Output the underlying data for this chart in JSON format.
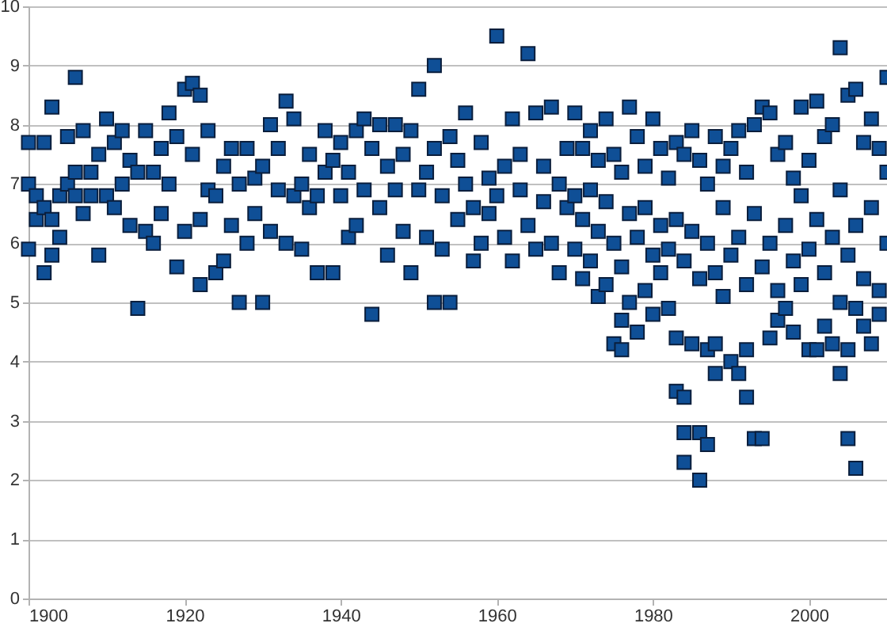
{
  "chart_data": {
    "type": "scatter",
    "x": [
      1900,
      1900,
      1900,
      1901,
      1901,
      1902,
      1902,
      1902,
      1903,
      1903,
      1903,
      1904,
      1904,
      1905,
      1905,
      1906,
      1906,
      1906,
      1907,
      1907,
      1908,
      1908,
      1909,
      1909,
      1910,
      1910,
      1911,
      1911,
      1912,
      1912,
      1913,
      1913,
      1914,
      1914,
      1915,
      1915,
      1916,
      1916,
      1917,
      1917,
      1918,
      1918,
      1919,
      1919,
      1920,
      1920,
      1921,
      1921,
      1922,
      1922,
      1922,
      1923,
      1923,
      1924,
      1924,
      1925,
      1925,
      1926,
      1926,
      1927,
      1927,
      1928,
      1928,
      1929,
      1929,
      1930,
      1930,
      1931,
      1931,
      1932,
      1932,
      1933,
      1933,
      1934,
      1934,
      1935,
      1935,
      1936,
      1936,
      1937,
      1937,
      1938,
      1938,
      1939,
      1939,
      1940,
      1940,
      1941,
      1941,
      1942,
      1942,
      1943,
      1943,
      1944,
      1944,
      1945,
      1945,
      1946,
      1946,
      1947,
      1947,
      1948,
      1948,
      1949,
      1949,
      1950,
      1950,
      1951,
      1951,
      1952,
      1952,
      1952,
      1953,
      1953,
      1954,
      1954,
      1955,
      1955,
      1956,
      1956,
      1957,
      1957,
      1958,
      1958,
      1959,
      1959,
      1960,
      1960,
      1961,
      1961,
      1962,
      1962,
      1963,
      1963,
      1964,
      1964,
      1965,
      1965,
      1966,
      1966,
      1967,
      1967,
      1968,
      1968,
      1969,
      1969,
      1970,
      1970,
      1970,
      1971,
      1971,
      1971,
      1972,
      1972,
      1972,
      1973,
      1973,
      1973,
      1974,
      1974,
      1974,
      1975,
      1975,
      1975,
      1976,
      1976,
      1976,
      1976,
      1977,
      1977,
      1977,
      1978,
      1978,
      1978,
      1979,
      1979,
      1979,
      1980,
      1980,
      1980,
      1981,
      1981,
      1981,
      1982,
      1982,
      1982,
      1983,
      1983,
      1983,
      1983,
      1984,
      1984,
      1984,
      1984,
      1984,
      1985,
      1985,
      1985,
      1986,
      1986,
      1986,
      1986,
      1987,
      1987,
      1987,
      1987,
      1988,
      1988,
      1988,
      1988,
      1989,
      1989,
      1989,
      1990,
      1990,
      1990,
      1991,
      1991,
      1991,
      1992,
      1992,
      1992,
      1992,
      1993,
      1993,
      1993,
      1994,
      1994,
      1994,
      1995,
      1995,
      1995,
      1996,
      1996,
      1996,
      1997,
      1997,
      1997,
      1998,
      1998,
      1998,
      1999,
      1999,
      1999,
      2000,
      2000,
      2000,
      2001,
      2001,
      2001,
      2002,
      2002,
      2002,
      2003,
      2003,
      2003,
      2004,
      2004,
      2004,
      2004,
      2005,
      2005,
      2005,
      2005,
      2006,
      2006,
      2006,
      2006,
      2007,
      2007,
      2007,
      2008,
      2008,
      2008,
      2009,
      2009,
      2009,
      2010,
      2010,
      2010
    ],
    "values": [
      7.7,
      5.9,
      7.0,
      6.8,
      6.4,
      7.7,
      5.5,
      6.6,
      8.3,
      5.8,
      6.4,
      6.8,
      6.1,
      7.0,
      7.8,
      8.8,
      6.8,
      7.2,
      7.9,
      6.5,
      7.2,
      6.8,
      7.5,
      5.8,
      8.1,
      6.8,
      7.7,
      6.6,
      7.9,
      7.0,
      7.4,
      6.3,
      4.9,
      7.2,
      7.9,
      6.2,
      7.2,
      6.0,
      6.5,
      7.6,
      8.2,
      7.0,
      7.8,
      5.6,
      8.6,
      6.2,
      8.7,
      7.5,
      8.5,
      6.4,
      5.3,
      7.9,
      6.9,
      6.8,
      5.5,
      7.3,
      5.7,
      7.6,
      6.3,
      5.0,
      7.0,
      7.6,
      6.0,
      7.1,
      6.5,
      5.0,
      7.3,
      8.0,
      6.2,
      7.6,
      6.9,
      8.4,
      6.0,
      8.1,
      6.8,
      7.0,
      5.9,
      7.5,
      6.6,
      6.8,
      5.5,
      7.9,
      7.2,
      7.4,
      5.5,
      6.8,
      7.7,
      7.2,
      6.1,
      7.9,
      6.3,
      8.1,
      6.9,
      4.8,
      7.6,
      8.0,
      6.6,
      7.3,
      5.8,
      6.9,
      8.0,
      7.5,
      6.2,
      7.9,
      5.5,
      8.6,
      6.9,
      7.2,
      6.1,
      9.0,
      5.0,
      7.6,
      6.8,
      5.9,
      5.0,
      7.8,
      7.4,
      6.4,
      8.2,
      7.0,
      6.6,
      5.7,
      7.7,
      6.0,
      7.1,
      6.5,
      9.5,
      6.8,
      7.3,
      6.1,
      8.1,
      5.7,
      6.9,
      7.5,
      9.2,
      6.3,
      8.2,
      5.9,
      7.3,
      6.7,
      8.3,
      6.0,
      7.0,
      5.5,
      7.6,
      6.6,
      8.2,
      6.8,
      5.9,
      7.6,
      6.4,
      5.4,
      7.9,
      6.9,
      5.7,
      7.4,
      6.2,
      5.1,
      8.1,
      6.7,
      5.3,
      7.5,
      6.0,
      4.3,
      7.2,
      5.6,
      4.7,
      4.2,
      8.3,
      6.5,
      5.0,
      7.8,
      6.1,
      4.5,
      7.3,
      6.6,
      5.2,
      8.1,
      5.8,
      4.8,
      7.6,
      6.3,
      5.5,
      7.1,
      5.9,
      4.9,
      7.7,
      6.4,
      4.4,
      3.5,
      7.5,
      5.7,
      3.4,
      2.8,
      2.3,
      7.9,
      6.2,
      4.3,
      7.4,
      5.4,
      2.8,
      2.0,
      7.0,
      6.0,
      4.2,
      2.6,
      7.8,
      5.5,
      4.3,
      3.8,
      7.3,
      6.6,
      5.1,
      7.6,
      5.8,
      4.0,
      7.9,
      6.1,
      3.8,
      7.2,
      5.3,
      4.2,
      3.4,
      8.0,
      6.5,
      2.7,
      8.3,
      5.6,
      2.7,
      8.2,
      6.0,
      4.4,
      7.5,
      5.2,
      4.7,
      7.7,
      6.3,
      4.9,
      7.1,
      5.7,
      4.5,
      8.3,
      6.8,
      5.3,
      7.4,
      5.9,
      4.2,
      8.4,
      6.4,
      4.2,
      7.8,
      5.5,
      4.6,
      8.0,
      6.1,
      4.3,
      9.3,
      6.9,
      3.8,
      5.0,
      8.5,
      5.8,
      4.2,
      2.7,
      8.6,
      6.3,
      2.2,
      4.9,
      7.7,
      5.4,
      4.6,
      8.1,
      6.6,
      4.3,
      7.6,
      5.2,
      4.8,
      8.8,
      6.0,
      7.2
    ],
    "color": "#0f4f96",
    "xlim": [
      1900,
      2010
    ],
    "ylim": [
      0,
      10
    ],
    "xticks": [
      1900,
      1920,
      1940,
      1960,
      1980,
      2000
    ],
    "yticks": [
      0,
      1,
      2,
      3,
      4,
      5,
      6,
      7,
      8,
      9,
      10
    ],
    "grid": "y",
    "marker": "square"
  }
}
